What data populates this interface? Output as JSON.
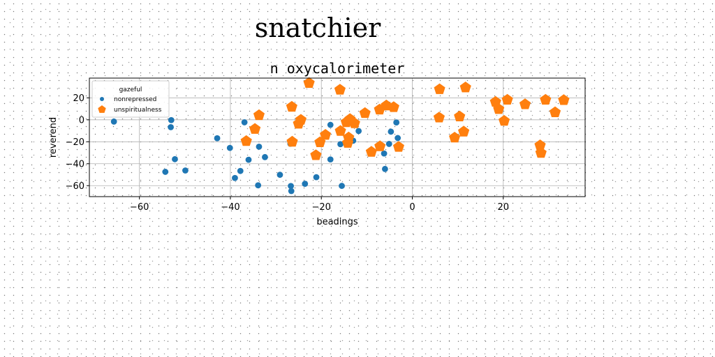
{
  "figure_title": "snatchier",
  "chart_data": {
    "type": "scatter",
    "title": "n oxycalorimeter",
    "xlabel": "beadings",
    "ylabel": "reverend",
    "xlim": [
      -71,
      38
    ],
    "ylim": [
      -70,
      38
    ],
    "xticks": [
      -60,
      -40,
      -20,
      0,
      20
    ],
    "yticks": [
      -60,
      -40,
      -20,
      0,
      20
    ],
    "grid": true,
    "legend": {
      "title": "gazeful",
      "placement": "top-left"
    },
    "series": [
      {
        "name": "nonrepressed",
        "color": "#1f77b4",
        "marker": "circle",
        "points": [
          [
            -65.6,
            -1.6
          ],
          [
            -53.0,
            -0.3
          ],
          [
            -53.1,
            -6.7
          ],
          [
            -52.2,
            -35.9
          ],
          [
            -54.3,
            -47.4
          ],
          [
            -49.9,
            -46.2
          ],
          [
            -42.9,
            -16.8
          ],
          [
            -40.1,
            -25.6
          ],
          [
            -39.0,
            -53.0
          ],
          [
            -37.8,
            -46.6
          ],
          [
            -36.9,
            -2.3
          ],
          [
            -36.0,
            -36.4
          ],
          [
            -33.7,
            -24.5
          ],
          [
            -33.9,
            -59.7
          ],
          [
            -32.4,
            -34.0
          ],
          [
            -29.1,
            -50.1
          ],
          [
            -26.8,
            -21.8
          ],
          [
            -26.7,
            -60.3
          ],
          [
            -26.6,
            -64.9
          ],
          [
            -23.6,
            -58.3
          ],
          [
            -21.1,
            -52.3
          ],
          [
            -18.0,
            -4.6
          ],
          [
            -18.0,
            -36.1
          ],
          [
            -15.8,
            -22.2
          ],
          [
            -15.5,
            -60.2
          ],
          [
            -13.0,
            -19.0
          ],
          [
            -11.8,
            -10.2
          ],
          [
            -6.2,
            -30.7
          ],
          [
            -6.0,
            -44.8
          ],
          [
            -5.1,
            -22.0
          ],
          [
            -4.7,
            -10.8
          ],
          [
            -3.2,
            -16.6
          ],
          [
            -3.5,
            -2.4
          ]
        ]
      },
      {
        "name": "unspiritualness",
        "color": "#ff7f0e",
        "marker": "pentagon",
        "points": [
          [
            -22.7,
            33.5
          ],
          [
            -15.9,
            27.4
          ],
          [
            -26.5,
            11.8
          ],
          [
            -33.7,
            4.2
          ],
          [
            -34.6,
            -8.4
          ],
          [
            -36.5,
            -19.4
          ],
          [
            -26.4,
            -20.0
          ],
          [
            -25.0,
            -3.6
          ],
          [
            -24.5,
            -0.1
          ],
          [
            -21.2,
            -32.3
          ],
          [
            -20.3,
            -20.5
          ],
          [
            -19.1,
            -13.8
          ],
          [
            -15.8,
            -10.2
          ],
          [
            -14.5,
            -2.2
          ],
          [
            -13.7,
            0.6
          ],
          [
            -12.7,
            -3.2
          ],
          [
            -14.2,
            -21.1
          ],
          [
            -14.0,
            -16.2
          ],
          [
            -10.4,
            6.1
          ],
          [
            -9.0,
            -29.2
          ],
          [
            -7.2,
            9.3
          ],
          [
            -7.1,
            -24.2
          ],
          [
            -5.7,
            13.0
          ],
          [
            -4.1,
            11.5
          ],
          [
            -3.0,
            -24.7
          ],
          [
            6.0,
            27.8
          ],
          [
            5.9,
            2.0
          ],
          [
            9.3,
            -16.3
          ],
          [
            10.4,
            3.0
          ],
          [
            11.3,
            -10.8
          ],
          [
            11.7,
            29.4
          ],
          [
            18.3,
            16.3
          ],
          [
            19.0,
            9.7
          ],
          [
            20.2,
            -1.0
          ],
          [
            20.9,
            18.2
          ],
          [
            24.8,
            14.1
          ],
          [
            28.1,
            -23.3
          ],
          [
            28.3,
            -30.2
          ],
          [
            29.3,
            18.2
          ],
          [
            31.4,
            6.8
          ],
          [
            33.3,
            17.9
          ]
        ]
      }
    ]
  }
}
